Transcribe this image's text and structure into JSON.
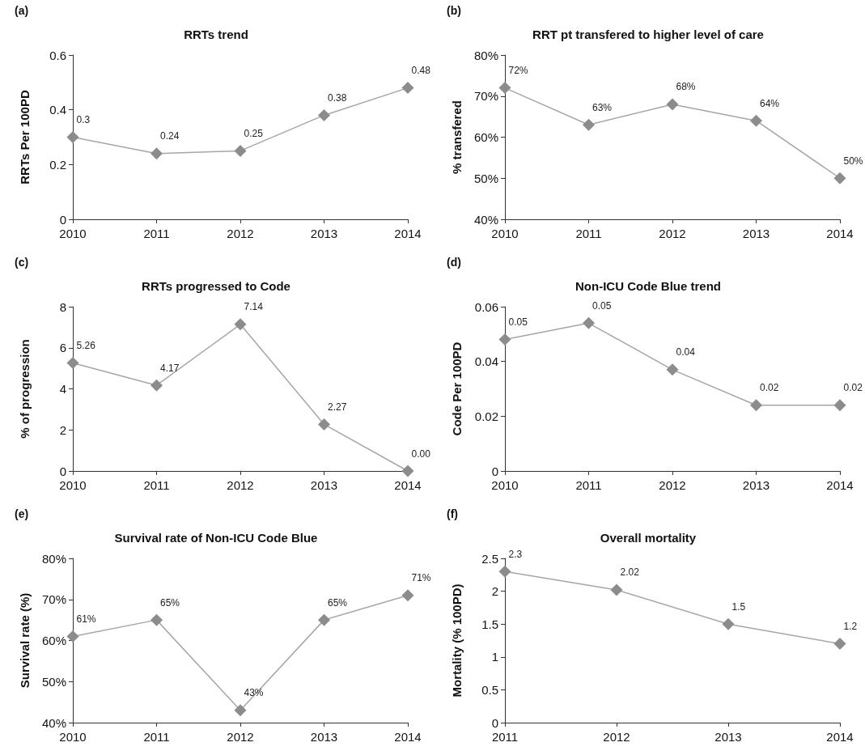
{
  "chart_data": [
    {
      "type": "line",
      "title": "RRTs trend",
      "ylabel": "RRTs Per 100PD",
      "annotations": [
        "(a)"
      ],
      "categories": [
        "2010",
        "2011",
        "2012",
        "2013",
        "2014"
      ],
      "series": [
        {
          "color": "#8c8c8c",
          "values": [
            0.3,
            0.24,
            0.25,
            0.38,
            0.48
          ]
        }
      ],
      "ylim": [
        0,
        0.6
      ],
      "yticks": [
        0,
        0.2,
        0.4,
        0.6
      ],
      "data_labels": true,
      "marker": "diamond",
      "line_style": "solid"
    },
    {
      "type": "line",
      "title": "RRT pt transfered to higher level of care",
      "ylabel": "% transfered",
      "annotations": [
        "(b)"
      ],
      "categories": [
        "2010",
        "2011",
        "2012",
        "2013",
        "2014"
      ],
      "series": [
        {
          "color": "#8c8c8c",
          "values": [
            72,
            63,
            68,
            64,
            50
          ],
          "value_labels": [
            "72%",
            "63%",
            "68%",
            "64%",
            "50%"
          ]
        }
      ],
      "ylim": [
        40,
        80
      ],
      "yticks": [
        {
          "value": 40,
          "label": "40%"
        },
        {
          "value": 50,
          "label": "50%"
        },
        {
          "value": 60,
          "label": "60%"
        },
        {
          "value": 70,
          "label": "70%"
        },
        {
          "value": 80,
          "label": "80%"
        }
      ],
      "marker": "diamond",
      "line_style": "solid"
    },
    {
      "type": "line",
      "title": "RRTs progressed to Code",
      "ylabel": "% of progression",
      "annotations": [
        "(c)"
      ],
      "categories": [
        "2010",
        "2011",
        "2012",
        "2013",
        "2014"
      ],
      "series": [
        {
          "color": "#8c8c8c",
          "values": [
            5.26,
            4.17,
            7.14,
            2.27,
            0
          ],
          "value_labels": [
            "5.26",
            "4.17",
            "7.14",
            "2.27",
            "0.00"
          ]
        }
      ],
      "ylim": [
        0,
        8
      ],
      "yticks": [
        0,
        2,
        4,
        6,
        8
      ],
      "marker": "diamond",
      "line_style": "solid"
    },
    {
      "type": "line",
      "title": "Non-ICU Code Blue trend",
      "ylabel": "Code Per 100PD",
      "annotations": [
        "(d)"
      ],
      "categories": [
        "2010",
        "2011",
        "2012",
        "2013",
        "2014"
      ],
      "series": [
        {
          "color": "#8c8c8c",
          "values": [
            0.048,
            0.054,
            0.037,
            0.024,
            0.024
          ],
          "value_labels": [
            "0.05",
            "0.05",
            "0.04",
            "0.02",
            "0.02"
          ]
        }
      ],
      "ylim": [
        0,
        0.06
      ],
      "yticks": [
        0,
        0.02,
        0.04,
        0.06
      ],
      "marker": "diamond",
      "line_style": "solid"
    },
    {
      "type": "line",
      "title": "Survival rate of Non-ICU Code Blue",
      "ylabel": "Survival rate (%)",
      "annotations": [
        "(e)"
      ],
      "categories": [
        "2010",
        "2011",
        "2012",
        "2013",
        "2014"
      ],
      "series": [
        {
          "color": "#8c8c8c",
          "values": [
            61,
            65,
            43,
            65,
            71
          ],
          "value_labels": [
            "61%",
            "65%",
            "43%",
            "65%",
            "71%"
          ]
        }
      ],
      "ylim": [
        40,
        80
      ],
      "yticks": [
        {
          "value": 40,
          "label": "40%"
        },
        {
          "value": 50,
          "label": "50%"
        },
        {
          "value": 60,
          "label": "60%"
        },
        {
          "value": 70,
          "label": "70%"
        },
        {
          "value": 80,
          "label": "80%"
        }
      ],
      "marker": "diamond",
      "line_style": "solid"
    },
    {
      "type": "line",
      "title": "Overall mortality",
      "ylabel": "Mortality (% 100PD)",
      "annotations": [
        "(f)"
      ],
      "categories": [
        "2011",
        "2012",
        "2013",
        "2014"
      ],
      "series": [
        {
          "color": "#8c8c8c",
          "values": [
            2.3,
            2.02,
            1.5,
            1.2
          ]
        }
      ],
      "ylim": [
        0,
        2.5
      ],
      "yticks": [
        0,
        0.5,
        1,
        1.5,
        2,
        2.5
      ],
      "data_labels": true,
      "marker": "diamond",
      "line_style": "solid"
    }
  ]
}
